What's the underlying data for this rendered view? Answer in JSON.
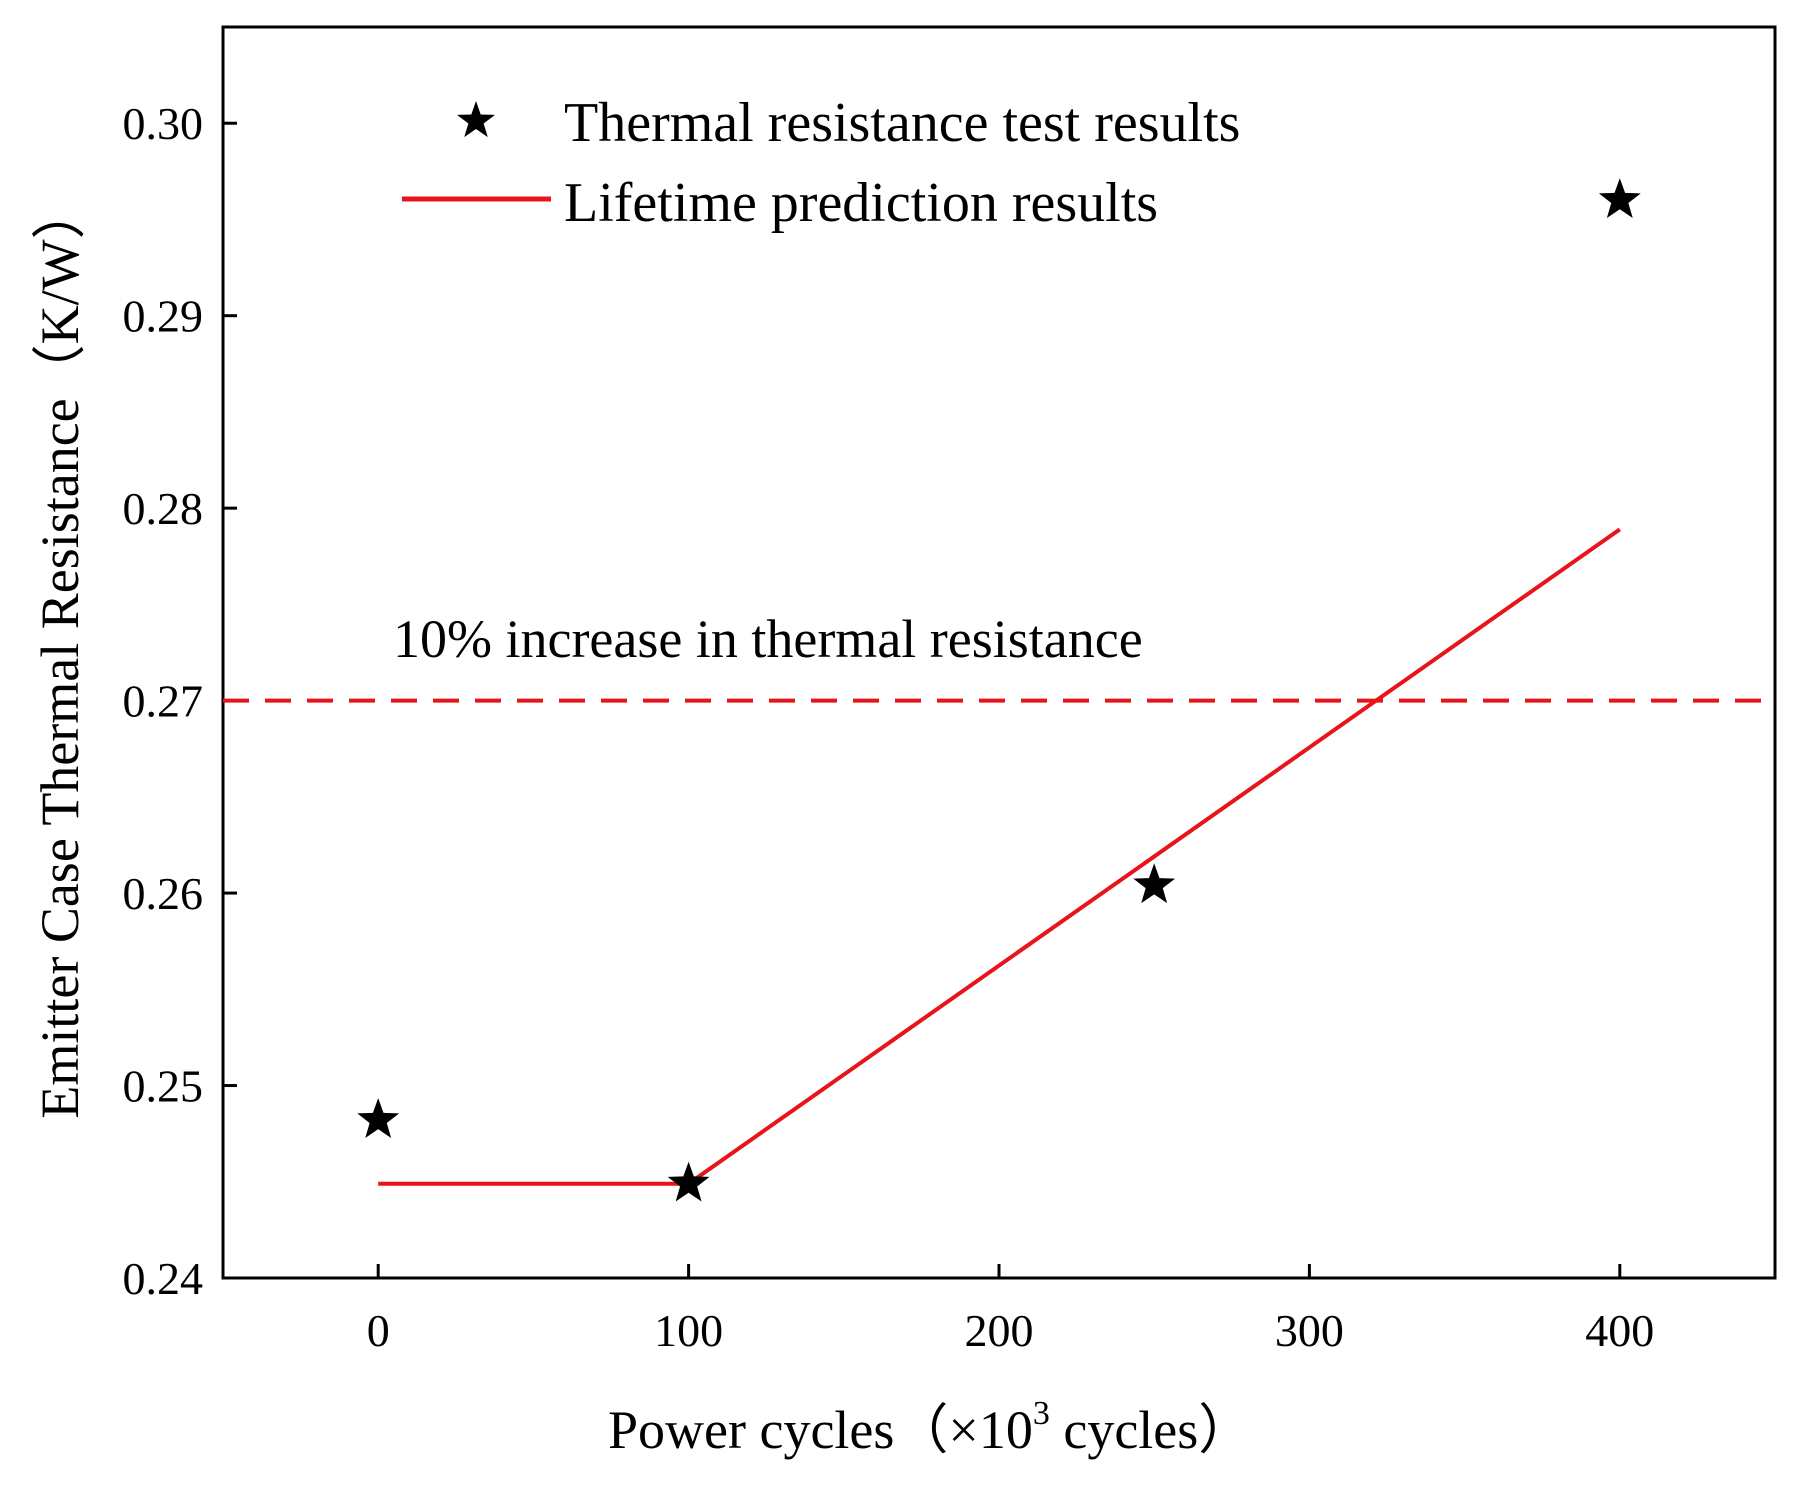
{
  "chart_data": {
    "type": "scatter",
    "x_axis": {
      "title_main": "Power cycles（×10",
      "title_sup": "3",
      "title_tail": " cycles）",
      "range": [
        -50,
        450
      ],
      "ticks": [
        0,
        100,
        200,
        300,
        400
      ],
      "tick_labels": [
        "0",
        "100",
        "200",
        "300",
        "400"
      ]
    },
    "y_axis": {
      "title": "Emitter Case Thermal Resistance（K/W）",
      "range": [
        0.24,
        0.305
      ],
      "ticks": [
        0.24,
        0.25,
        0.26,
        0.27,
        0.28,
        0.29,
        0.3
      ],
      "tick_labels": [
        "0.24",
        "0.25",
        "0.26",
        "0.27",
        "0.28",
        "0.29",
        "0.30"
      ]
    },
    "series": [
      {
        "name": "Thermal resistance test results",
        "kind": "scatter",
        "marker": "star",
        "color": "#000000",
        "points": [
          {
            "x": 0,
            "y": 0.2482
          },
          {
            "x": 100,
            "y": 0.2449
          },
          {
            "x": 250,
            "y": 0.2604
          },
          {
            "x": 400,
            "y": 0.296
          }
        ]
      },
      {
        "name": "Lifetime prediction results",
        "kind": "line",
        "color": "#e8141c",
        "points": [
          {
            "x": 0,
            "y": 0.2449
          },
          {
            "x": 100,
            "y": 0.2449
          },
          {
            "x": 400,
            "y": 0.2789
          }
        ]
      }
    ],
    "reference_line": {
      "y": 0.27,
      "style": "dashed",
      "color": "#e8141c",
      "label": "10% increase in thermal resistance"
    },
    "legend": {
      "position": "top-left",
      "entries": [
        "Thermal resistance test results",
        "Lifetime prediction results"
      ]
    },
    "grid": false
  }
}
